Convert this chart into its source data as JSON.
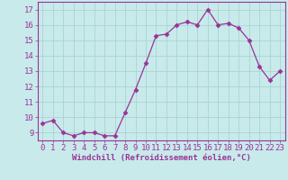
{
  "x": [
    0,
    1,
    2,
    3,
    4,
    5,
    6,
    7,
    8,
    9,
    10,
    11,
    12,
    13,
    14,
    15,
    16,
    17,
    18,
    19,
    20,
    21,
    22,
    23
  ],
  "y": [
    9.6,
    9.8,
    9.0,
    8.8,
    9.0,
    9.0,
    8.8,
    8.8,
    10.3,
    11.8,
    13.5,
    15.3,
    15.4,
    16.0,
    16.2,
    16.0,
    17.0,
    16.0,
    16.1,
    15.8,
    15.0,
    13.3,
    12.4,
    13.0
  ],
  "line_color": "#993399",
  "marker": "D",
  "marker_size": 2.5,
  "bg_color": "#c8eaea",
  "grid_color": "#aad4d4",
  "xlabel": "Windchill (Refroidissement éolien,°C)",
  "xlabel_color": "#993399",
  "tick_color": "#993399",
  "ylim": [
    8.5,
    17.5
  ],
  "xlim": [
    -0.5,
    23.5
  ],
  "yticks": [
    9,
    10,
    11,
    12,
    13,
    14,
    15,
    16,
    17
  ],
  "xticks": [
    0,
    1,
    2,
    3,
    4,
    5,
    6,
    7,
    8,
    9,
    10,
    11,
    12,
    13,
    14,
    15,
    16,
    17,
    18,
    19,
    20,
    21,
    22,
    23
  ],
  "tick_fontsize": 6.5,
  "xlabel_fontsize": 6.5
}
